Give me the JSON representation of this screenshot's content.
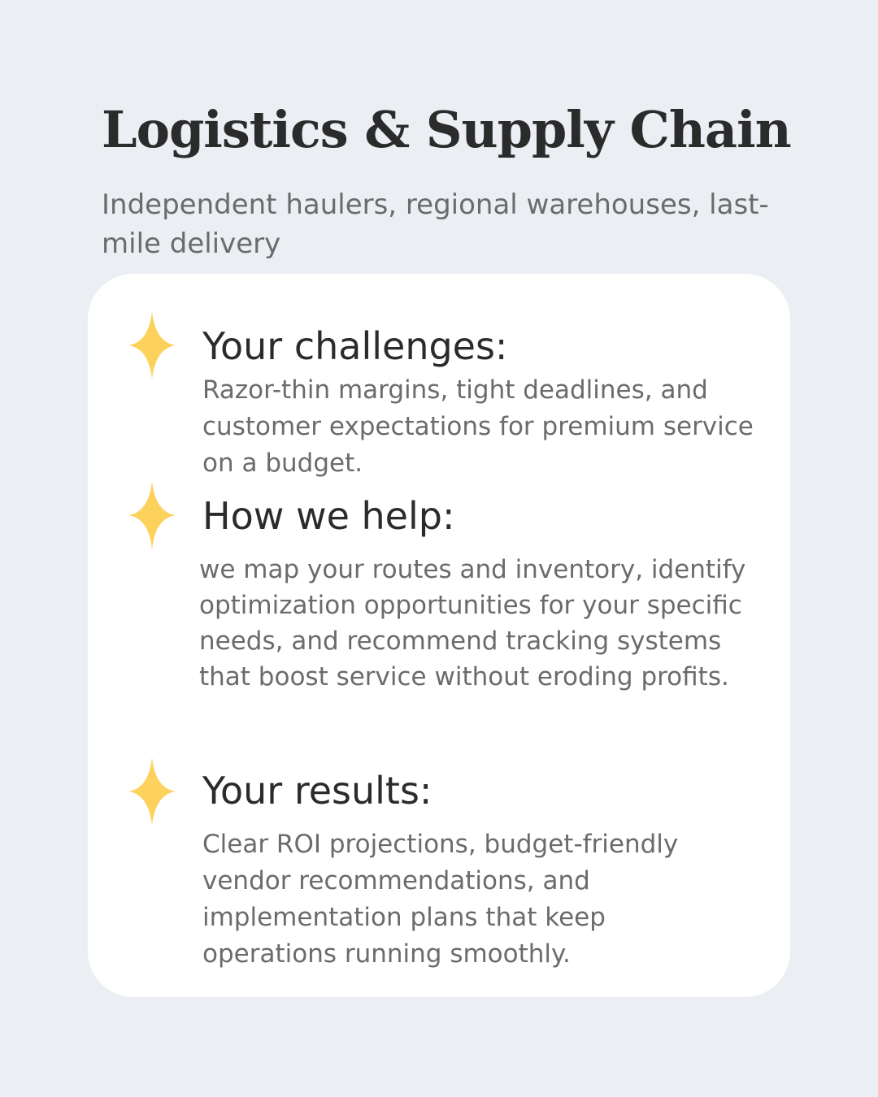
{
  "header": {
    "title": "Logistics & Supply Chain",
    "subtitle": "Independent haulers, regional warehouses, last-mile delivery"
  },
  "sections": [
    {
      "heading": "Your challenges:",
      "body": "Razor-thin margins, tight deadlines, and customer expectations for premium service on a budget.",
      "icon": "sparkle-icon"
    },
    {
      "heading": "How we help:",
      "body": "we map your routes and inventory, identify optimization opportunities for your specific needs, and recommend tracking systems that boost service without eroding profits.",
      "icon": "sparkle-icon"
    },
    {
      "heading": "Your results:",
      "body": "Clear ROI projections, budget-friendly vendor recommendations, and implementation plans that keep operations running smoothly.",
      "icon": "sparkle-icon"
    }
  ],
  "colors": {
    "background": "#ebeff3",
    "card": "#ffffff",
    "accent": "#fcd25c",
    "heading": "#2b2b2b",
    "body_text": "#6b6b6b"
  }
}
